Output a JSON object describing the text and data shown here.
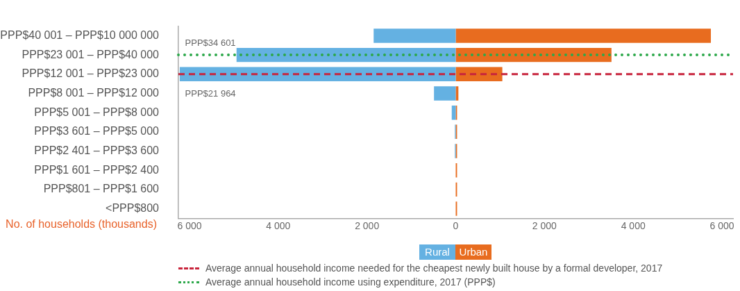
{
  "chart_data": {
    "type": "bar",
    "orientation": "horizontal",
    "xlabel": "No. of households (thousands)",
    "categories": [
      "PPP$40 001 – PPP$10 000 000",
      "PPP$23 001 – PPP$40 000",
      "PPP$12 001 – PPP$23 000",
      "PPP$8 001 – PPP$12 000",
      "PPP$5 001 – PPP$8 000",
      "PPP$3 601 – PPP$5 000",
      "PPP$2 401 – PPP$3 600",
      "PPP$1 601 – PPP$2 400",
      "PPP$801 – PPP$1 600",
      "<PPP$800"
    ],
    "series": [
      {
        "name": "Rural",
        "color": "#64b1e2",
        "values": [
          -1850,
          -4940,
          -6220,
          -490,
          -90,
          -20,
          -20,
          0,
          0,
          0
        ]
      },
      {
        "name": "Urban",
        "color": "#e86c1f",
        "values": [
          5750,
          3510,
          1050,
          60,
          30,
          30,
          30,
          30,
          30,
          30
        ]
      }
    ],
    "xlim": [
      -6250,
      6250
    ],
    "xticks": [
      {
        "value": -6000,
        "label": "6 000"
      },
      {
        "value": -4000,
        "label": "4 000"
      },
      {
        "value": -2000,
        "label": "2 000"
      },
      0,
      {
        "value": 2000,
        "label": "2 000"
      },
      {
        "value": 4000,
        "label": "4 000"
      },
      {
        "value": 6000,
        "label": "6 000"
      }
    ],
    "ref_lines": [
      {
        "axis": "y",
        "value": "PPP$12 001 – PPP$23 000",
        "label": "Average annual household income needed for the cheapest newly built house by a formal developer, 2017",
        "color": "#c8243c",
        "line_style": "dashed"
      },
      {
        "axis": "y",
        "value": "PPP$23 001 – PPP$40 000",
        "label": "Average annual household income using expenditure, 2017 (PPP$)",
        "color": "#2ca84a",
        "line_style": "dotted"
      }
    ],
    "annotations": [
      {
        "text": "PPP$34 601",
        "x": -6100,
        "y": "PPP$23 001 – PPP$40 000"
      },
      {
        "text": "PPP$21 964",
        "x": -6100,
        "y": "PPP$12 001 – PPP$23 000"
      }
    ],
    "legend": "bottom",
    "grid": false
  }
}
